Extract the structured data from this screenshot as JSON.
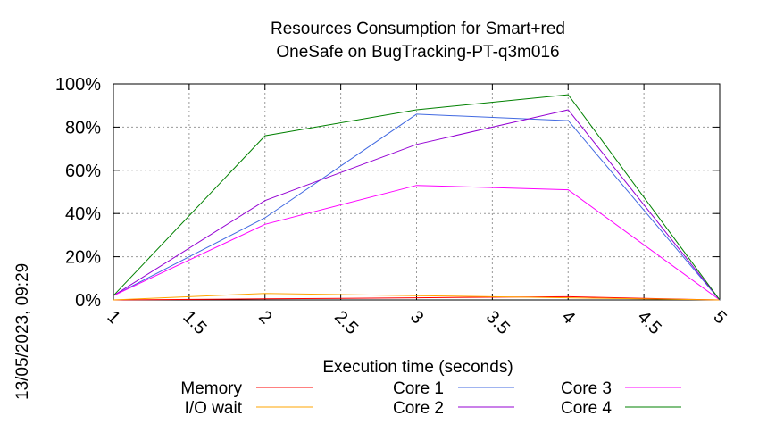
{
  "timestamp": "13/05/2023, 09:29",
  "chart_data": {
    "type": "line",
    "title": [
      "Resources Consumption for Smart+red",
      "OneSafe on BugTracking-PT-q3m016"
    ],
    "xlabel": "Execution time (seconds)",
    "ylabel": "",
    "xlim": [
      1,
      5
    ],
    "ylim": [
      0,
      100
    ],
    "x_ticks": [
      "1",
      "1.5",
      "2",
      "2.5",
      "3",
      "3.5",
      "4",
      "4.5",
      "5"
    ],
    "y_ticks": [
      "0%",
      "20%",
      "40%",
      "60%",
      "80%",
      "100%"
    ],
    "grid": true,
    "legend_position": "bottom",
    "x": [
      1,
      2,
      3,
      4,
      5
    ],
    "series": [
      {
        "name": "Memory",
        "color": "#ff0000",
        "values": [
          0,
          0.5,
          1,
          1.5,
          0
        ]
      },
      {
        "name": "I/O wait",
        "color": "#ffa500",
        "values": [
          0,
          3,
          2,
          1,
          0
        ]
      },
      {
        "name": "Core 1",
        "color": "#4169e1",
        "values": [
          2,
          38,
          86,
          83,
          0
        ]
      },
      {
        "name": "Core 2",
        "color": "#9400d3",
        "values": [
          2,
          46,
          72,
          88,
          0
        ]
      },
      {
        "name": "Core 3",
        "color": "#ff00ff",
        "values": [
          2,
          35,
          53,
          51,
          0
        ]
      },
      {
        "name": "Core 4",
        "color": "#008000",
        "values": [
          2,
          76,
          88,
          95,
          0
        ]
      }
    ]
  }
}
